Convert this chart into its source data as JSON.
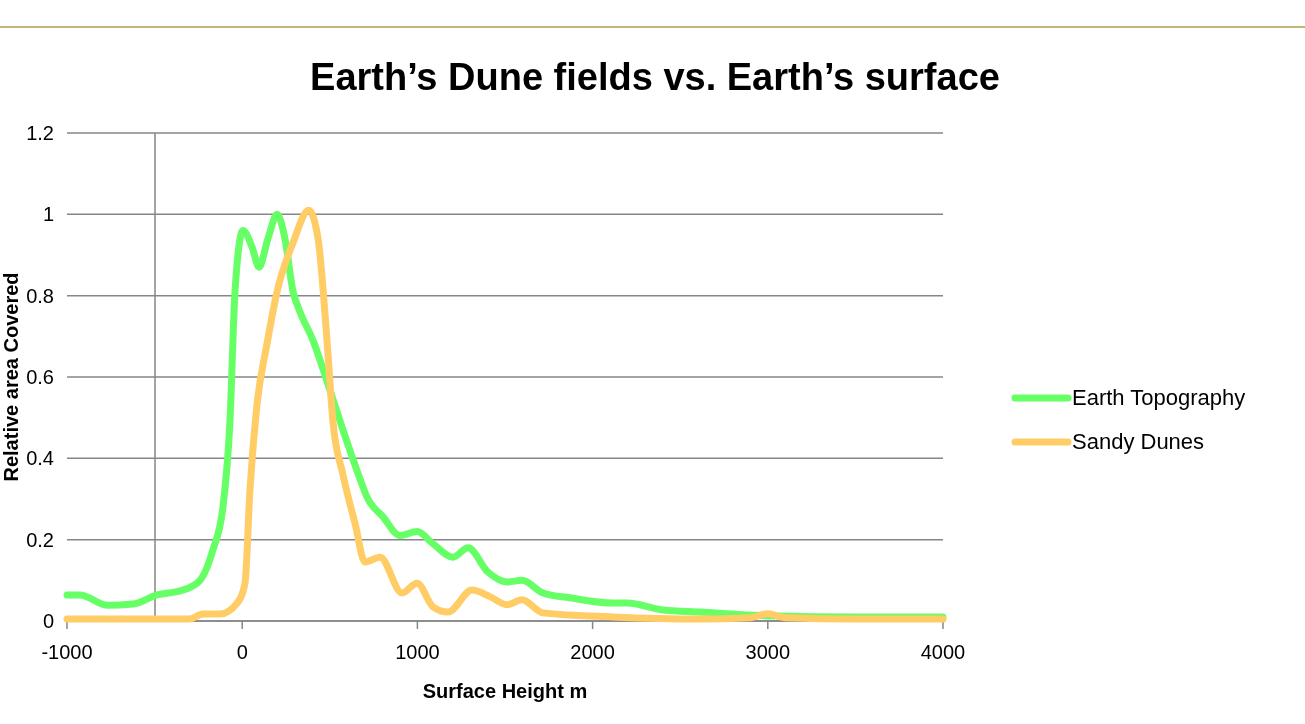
{
  "chart_data": {
    "type": "line",
    "title": "Earth’s Dune fields vs. Earth’s surface",
    "xlabel": "Surface Height m",
    "ylabel": "Relative area Covered",
    "xlim": [
      -1000,
      4000
    ],
    "xticks": [
      -1000,
      0,
      1000,
      2000,
      3000,
      4000
    ],
    "ylim": [
      0,
      1.2
    ],
    "yticks": [
      0,
      0.2,
      0.4,
      0.6,
      0.8,
      1,
      1.2
    ],
    "grid": "y",
    "legend": "right",
    "marker": "none",
    "line_style": "solid",
    "series": [
      {
        "name": "Earth Topography",
        "color": "#66ff66",
        "x": [
          -1000,
          -926,
          -772,
          -623,
          -486,
          -338,
          -241,
          -167,
          -110,
          -70,
          -41,
          4,
          56,
          96,
          147,
          199,
          244,
          290,
          330,
          404,
          484,
          575,
          672,
          712,
          804,
          901,
          998,
          1089,
          1203,
          1289,
          1403,
          1511,
          1597,
          1717,
          1871,
          2116,
          2196,
          2402,
          2613,
          3000,
          3500,
          4000
        ],
        "values": [
          0.064,
          0.064,
          0.039,
          0.042,
          0.064,
          0.076,
          0.1,
          0.175,
          0.28,
          0.49,
          0.81,
          0.96,
          0.92,
          0.87,
          0.94,
          1.0,
          0.94,
          0.81,
          0.76,
          0.69,
          0.59,
          0.47,
          0.35,
          0.305,
          0.256,
          0.21,
          0.22,
          0.19,
          0.157,
          0.18,
          0.12,
          0.096,
          0.1,
          0.069,
          0.057,
          0.044,
          0.044,
          0.027,
          0.022,
          0.013,
          0.01,
          0.01
        ]
      },
      {
        "name": "Sandy Dunes",
        "color": "#ffcc66",
        "x": [
          -1000,
          -300,
          -224,
          -127,
          -29,
          16,
          44,
          84,
          141,
          199,
          290,
          380,
          433,
          484,
          518,
          575,
          644,
          701,
          787,
          912,
          998,
          1089,
          1175,
          1312,
          1414,
          1511,
          1597,
          1717,
          2116,
          2613,
          2900,
          3000,
          3100,
          3500,
          4000
        ],
        "values": [
          0.005,
          0.005,
          0.017,
          0.017,
          0.044,
          0.093,
          0.32,
          0.53,
          0.68,
          0.81,
          0.93,
          1.01,
          0.94,
          0.69,
          0.49,
          0.36,
          0.24,
          0.145,
          0.157,
          0.069,
          0.093,
          0.035,
          0.022,
          0.076,
          0.06,
          0.04,
          0.052,
          0.02,
          0.01,
          0.005,
          0.008,
          0.018,
          0.008,
          0.005,
          0.005
        ]
      }
    ]
  }
}
